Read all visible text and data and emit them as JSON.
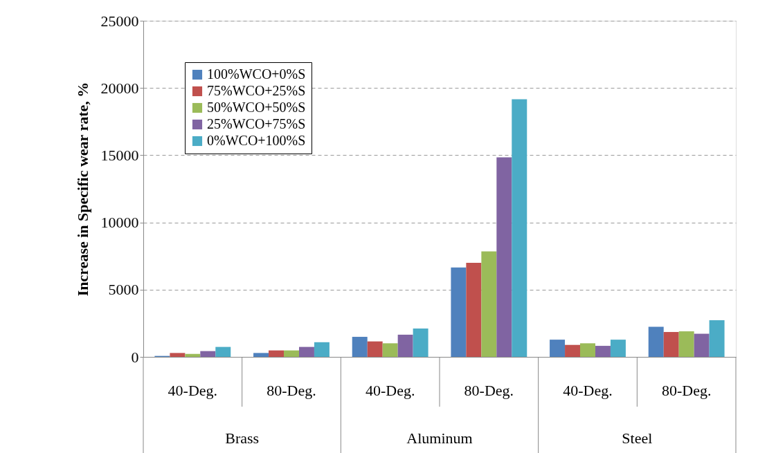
{
  "chart_data": {
    "type": "bar",
    "ylabel": "Increase in Specific wear rate, %",
    "categories": [
      "40-Deg.",
      "80-Deg.",
      "40-Deg.",
      "80-Deg.",
      "40-Deg.",
      "80-Deg."
    ],
    "annotations": [
      "Brass",
      "Aluminum",
      "Steel"
    ],
    "series": [
      {
        "name": "100%WCO+0%S",
        "color": "#4f81bd",
        "values": [
          70,
          290,
          1490,
          6650,
          1280,
          2240
        ]
      },
      {
        "name": "75%WCO+25%S",
        "color": "#c0504d",
        "values": [
          290,
          480,
          1150,
          6990,
          890,
          1850
        ]
      },
      {
        "name": "50%WCO+50%S",
        "color": "#9bbb59",
        "values": [
          220,
          480,
          1010,
          7850,
          1010,
          1900
        ]
      },
      {
        "name": "25%WCO+75%S",
        "color": "#8064a2",
        "values": [
          430,
          740,
          1650,
          14840,
          820,
          1720
        ]
      },
      {
        "name": "0%WCO+100%S",
        "color": "#4bacc6",
        "values": [
          740,
          1090,
          2110,
          19160,
          1280,
          2720
        ]
      }
    ],
    "ylim": [
      0,
      25000
    ],
    "yticks": [
      0,
      5000,
      10000,
      15000,
      20000,
      25000
    ],
    "grid": "y",
    "legend": "top left"
  }
}
